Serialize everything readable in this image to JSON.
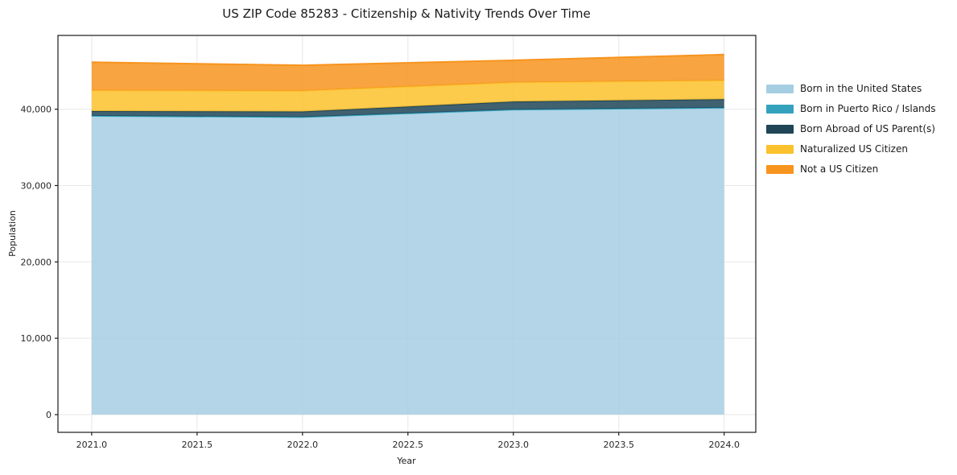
{
  "chart_data": {
    "type": "area",
    "stacked": true,
    "title": "US ZIP Code 85283 - Citizenship & Nativity Trends Over Time",
    "xlabel": "Year",
    "ylabel": "Population",
    "x": [
      2021,
      2022,
      2023,
      2024
    ],
    "series": [
      {
        "name": "Born in the United States",
        "color": "#a6cee3",
        "values": [
          39100,
          38950,
          39900,
          40150
        ]
      },
      {
        "name": "Born in Puerto Rico / Islands",
        "color": "#35a2bd",
        "values": [
          30,
          20,
          50,
          40
        ]
      },
      {
        "name": "Born Abroad of US Parent(s)",
        "color": "#1f4557",
        "values": [
          620,
          730,
          1050,
          1110
        ]
      },
      {
        "name": "Naturalized US Citizen",
        "color": "#fcc22d",
        "values": [
          2700,
          2700,
          2500,
          2450
        ]
      },
      {
        "name": "Not a US Citizen",
        "color": "#f7941e",
        "values": [
          3700,
          3350,
          2900,
          3400
        ]
      }
    ],
    "totals": [
      46150,
      45750,
      46400,
      47150
    ],
    "xlim": [
      2020.84,
      2024.15
    ],
    "ylim": [
      -2320,
      49660
    ],
    "x_tick_labels": [
      "2021.0",
      "2021.5",
      "2022.0",
      "2022.5",
      "2023.0",
      "2023.5",
      "2024.0"
    ],
    "y_tick_labels": [
      "0",
      "10,000",
      "20,000",
      "30,000",
      "40,000"
    ],
    "grid": "on",
    "grid_color": "#e7e7e7",
    "legend_position": "outside-right",
    "fill_opacity": 0.85
  }
}
